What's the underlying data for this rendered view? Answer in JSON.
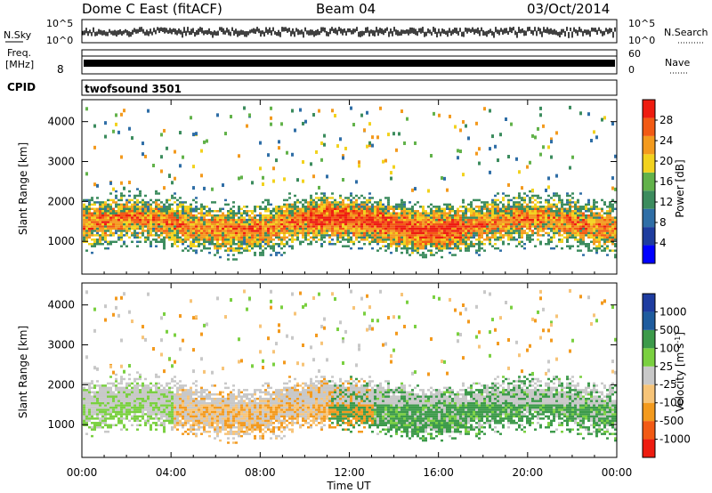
{
  "header": {
    "title": "Dome C East (fitACF)",
    "beam": "Beam 04",
    "date": "03/Oct/2014"
  },
  "strips": {
    "nsky_label": "N.Sky",
    "nsky_top": "10^5",
    "nsky_bottom": "10^0",
    "nsearch_label": "N.Search",
    "nsearch_top": "10^5",
    "nsearch_bottom": "10^0",
    "freq_label": "Freq.",
    "freq_unit": "[MHz]",
    "freq_tick": "8",
    "nave_label": "Nave",
    "nave_top": "60",
    "nave_bottom": "0",
    "cpid_label": "CPID",
    "cpid_value": "twofsound 3501"
  },
  "colors": {
    "power_scale": [
      "#0000ff",
      "#1e3c9e",
      "#2f6ea6",
      "#3c8c5e",
      "#62b24a",
      "#f2d21e",
      "#f39a1e",
      "#f25a14",
      "#ee1c10"
    ],
    "velocity_scale": [
      "#ee1c10",
      "#f25a14",
      "#f39a1e",
      "#f7c478",
      "#c8c8c8",
      "#7ad040",
      "#3c9a4a",
      "#1e5c9e",
      "#1e3ca0"
    ]
  },
  "chart_data": [
    {
      "type": "heatmap",
      "name": "power",
      "ylabel": "Slant Range [km]",
      "y_ticks": [
        "1000",
        "2000",
        "3000",
        "4000"
      ],
      "y_tick_values": [
        1000,
        2000,
        3000,
        4000
      ],
      "ylim": [
        180,
        4550
      ],
      "xlim": [
        0,
        24
      ],
      "colorbar_label": "Power [dB]",
      "colorbar_ticks": [
        "4",
        "8",
        "12",
        "16",
        "20",
        "24",
        "28"
      ],
      "colorbar_values": [
        4,
        8,
        12,
        16,
        20,
        24,
        28
      ],
      "colorbar_range": [
        0,
        32
      ]
    },
    {
      "type": "heatmap",
      "name": "velocity",
      "ylabel": "Slant Range [km]",
      "y_ticks": [
        "1000",
        "2000",
        "3000",
        "4000"
      ],
      "y_tick_values": [
        1000,
        2000,
        3000,
        4000
      ],
      "ylim": [
        180,
        4550
      ],
      "xlim": [
        0,
        24
      ],
      "xlabel": "Time UT",
      "x_ticks": [
        "00:00",
        "04:00",
        "08:00",
        "12:00",
        "16:00",
        "20:00",
        "00:00"
      ],
      "x_tick_values": [
        0,
        4,
        8,
        12,
        16,
        20,
        24
      ],
      "colorbar_label": "Velocity [m s",
      "colorbar_label_sup": "-1",
      "colorbar_label_end": "]",
      "colorbar_ticks": [
        "1000",
        "500",
        "100",
        "25",
        "-25",
        "-100",
        "-500",
        "-1000"
      ]
    }
  ]
}
